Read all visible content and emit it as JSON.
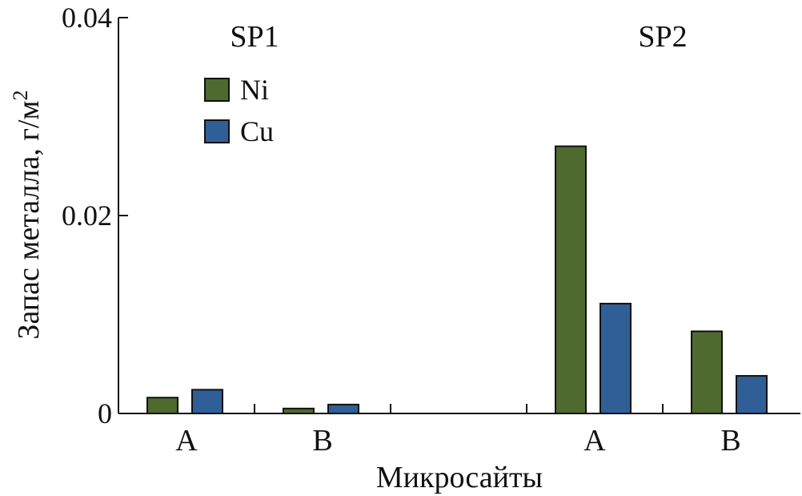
{
  "chart_data": {
    "type": "bar",
    "ylabel": "Запас металла, г/м",
    "ylabel_sup": "2",
    "xlabel": "Микросайты",
    "ylim": [
      0,
      0.04
    ],
    "yticks": [
      "0",
      "0.02",
      "0.04"
    ],
    "ytick_values": [
      0,
      0.02,
      0.04
    ],
    "groups": [
      {
        "label": "SP1",
        "categories": [
          "A",
          "B"
        ]
      },
      {
        "label": "SP2",
        "categories": [
          "A",
          "B"
        ]
      }
    ],
    "series": [
      {
        "name": "Ni",
        "color": "#4e6a2e",
        "values": [
          0.0016,
          0.0005,
          0.027,
          0.0083
        ]
      },
      {
        "name": "Cu",
        "color": "#2f5f96",
        "values": [
          0.0024,
          0.0009,
          0.0111,
          0.0038
        ]
      }
    ],
    "legend_position": "upper-left",
    "grid": false
  }
}
